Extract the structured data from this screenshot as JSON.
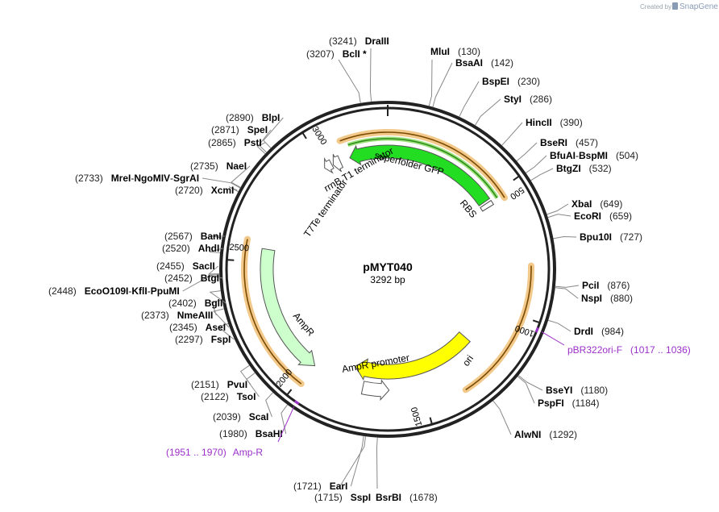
{
  "branding": {
    "created_by": "Created by",
    "brand": "SnapGene"
  },
  "plasmid": {
    "name": "pMYT040",
    "length_label": "3292 bp",
    "length": 3292
  },
  "tick_labels": [
    "500",
    "1000",
    "1500",
    "2000",
    "2500",
    "3000"
  ],
  "enzymes": [
    {
      "name": "MluI",
      "pos": "(130)"
    },
    {
      "name": "BsaAI",
      "pos": "(142)"
    },
    {
      "name": "BspEI",
      "pos": "(230)"
    },
    {
      "name": "StyI",
      "pos": "(286)"
    },
    {
      "name": "HincII",
      "pos": "(390)"
    },
    {
      "name": "BseRI",
      "pos": "(457)"
    },
    {
      "name": "BfuAI",
      "sep": " - ",
      "name2": "BspMI",
      "pos": "(504)"
    },
    {
      "name": "BtgZI",
      "pos": "(532)"
    },
    {
      "name": "XbaI",
      "pos": "(649)"
    },
    {
      "name": "EcoRI",
      "pos": "(659)"
    },
    {
      "name": "Bpu10I",
      "pos": "(727)"
    },
    {
      "name": "PciI",
      "pos": "(876)"
    },
    {
      "name": "NspI",
      "pos": "(880)"
    },
    {
      "name": "DrdI",
      "pos": "(984)"
    },
    {
      "name": "BseYI",
      "pos": "(1180)"
    },
    {
      "name": "PspFI",
      "pos": "(1184)"
    },
    {
      "name": "AlwNI",
      "pos": "(1292)"
    },
    {
      "name": "BsrBI",
      "pos": "(1678)"
    },
    {
      "name": "SspI",
      "pos": "(1715)"
    },
    {
      "name": "EarI",
      "pos": "(1721)"
    },
    {
      "name": "BsaHI",
      "pos": "(1980)"
    },
    {
      "name": "ScaI",
      "pos": "(2039)"
    },
    {
      "name": "TsoI",
      "pos": "(2122)"
    },
    {
      "name": "PvuI",
      "pos": "(2151)"
    },
    {
      "name": "FspI",
      "pos": "(2297)"
    },
    {
      "name": "AseI",
      "pos": "(2345)"
    },
    {
      "name": "NmeAIII",
      "pos": "(2373)"
    },
    {
      "name": "BglI",
      "pos": "(2402)"
    },
    {
      "name": "EcoO109I",
      "sep": " - ",
      "name2": "KflI",
      "sep2": " - ",
      "name3": "PpuMI",
      "pos": "(2448)"
    },
    {
      "name": "BtgI",
      "pos": "(2452)"
    },
    {
      "name": "SacII",
      "pos": "(2455)"
    },
    {
      "name": "AhdI",
      "pos": "(2520)"
    },
    {
      "name": "BanI",
      "pos": "(2567)"
    },
    {
      "name": "XcmI",
      "pos": "(2720)"
    },
    {
      "name": "MreI",
      "sep": " - ",
      "name2": "NgoMIV",
      "sep2": " - ",
      "name3": "SgrAI",
      "pos": "(2733)"
    },
    {
      "name": "NaeI",
      "pos": "(2735)"
    },
    {
      "name": "PstI",
      "pos": "(2865)"
    },
    {
      "name": "SpeI",
      "pos": "(2871)"
    },
    {
      "name": "BlpI",
      "pos": "(2890)"
    },
    {
      "name": "BclI *",
      "pos": "(3207)"
    },
    {
      "name": "DraIII",
      "pos": "(3241)"
    }
  ],
  "primers": [
    {
      "name": "pBR322ori-F",
      "pos": "(1017 .. 1036)"
    },
    {
      "name": "Amp-R",
      "pos": "(1951 .. 1970)"
    }
  ],
  "features": [
    {
      "name": "superfolder GFP",
      "color": "#22dd22"
    },
    {
      "name": "rrnB T1 terminator",
      "color": "#ffffff"
    },
    {
      "name": "T7Te terminator",
      "color": "#ffffff"
    },
    {
      "name": "RBS",
      "color": "#ffffff"
    },
    {
      "name": "ori",
      "color": "#ffff00"
    },
    {
      "name": "AmpR",
      "color": "#ccffcc"
    },
    {
      "name": "AmpR promoter",
      "color": "#ffffff"
    }
  ],
  "colors": {
    "backbone": "#222222",
    "orf_highlight": "#f2c98a",
    "orf_line": "#7a4a00",
    "gfp_orf_inner": "#2a8a1a",
    "primer": "#9b30c8",
    "brand": "#8a9bb5"
  }
}
